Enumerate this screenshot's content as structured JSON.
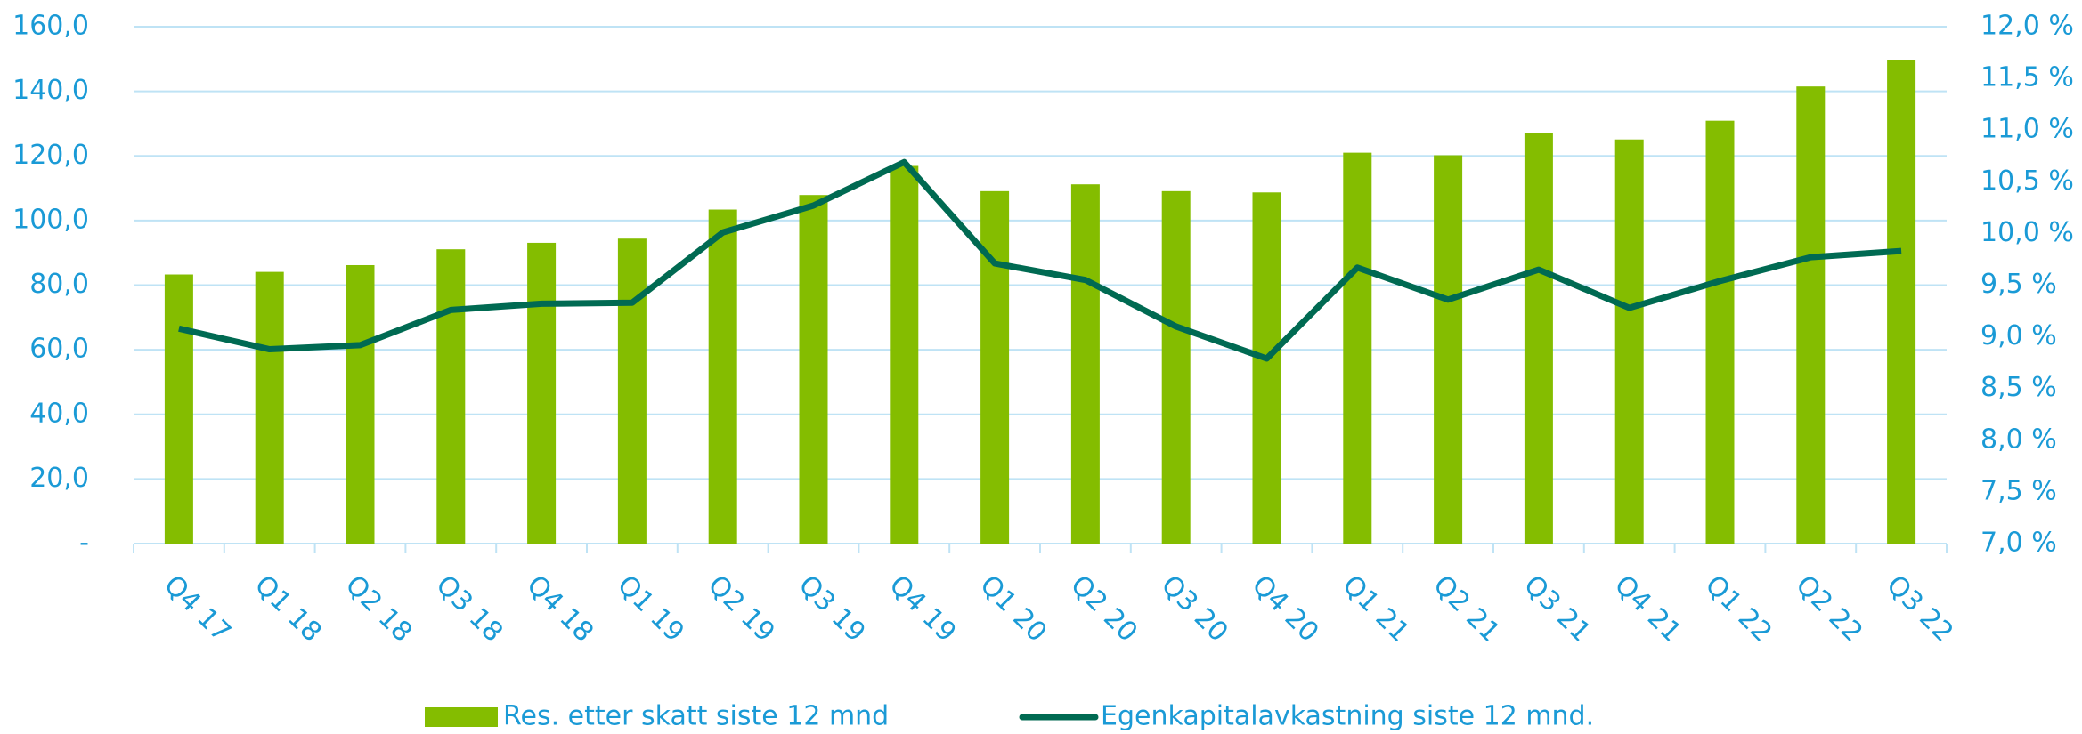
{
  "chart_data": {
    "type": "bar",
    "categories": [
      "Q4 17",
      "Q1 18",
      "Q2 18",
      "Q3 18",
      "Q4 18",
      "Q1 19",
      "Q2 19",
      "Q3 19",
      "Q4 19",
      "Q1 20",
      "Q2 20",
      "Q3 20",
      "Q4 20",
      "Q1 21",
      "Q2 21",
      "Q3 21",
      "Q4 21",
      "Q1 22",
      "Q2 22",
      "Q3 22"
    ],
    "series": [
      {
        "name": "Res. etter skatt siste 12 mnd",
        "color": "#84bd00",
        "type": "bar",
        "values": [
          83.3,
          84.1,
          86.2,
          91.1,
          93.1,
          94.4,
          103.4,
          107.9,
          116.9,
          109.1,
          111.2,
          109.1,
          108.7,
          121.0,
          120.2,
          127.2,
          125.1,
          130.9,
          141.5,
          149.7
        ]
      },
      {
        "name": "Egenkapitalavkastning siste 12 mnd.",
        "color": "#006a52",
        "type": "line",
        "axis": "y2",
        "values": [
          9.08,
          8.88,
          8.92,
          9.26,
          9.32,
          9.33,
          10.01,
          10.27,
          10.69,
          9.71,
          9.55,
          9.1,
          8.79,
          9.67,
          9.36,
          9.65,
          9.28,
          9.54,
          9.77,
          9.83
        ]
      }
    ],
    "ylim": [
      0,
      160
    ],
    "yticks": [
      {
        "value": 0,
        "label": "-"
      },
      {
        "value": 20,
        "label": "20,0"
      },
      {
        "value": 40,
        "label": "40,0"
      },
      {
        "value": 60,
        "label": "60,0"
      },
      {
        "value": 80,
        "label": "80,0"
      },
      {
        "value": 100,
        "label": "100,0"
      },
      {
        "value": 120,
        "label": "120,0"
      },
      {
        "value": 140,
        "label": "140,0"
      },
      {
        "value": 160,
        "label": "160,0"
      }
    ],
    "y2lim": [
      7,
      12
    ],
    "y2ticks": [
      {
        "value": 7,
        "label": "7,0 %"
      },
      {
        "value": 7.5,
        "label": "7,5 %"
      },
      {
        "value": 8,
        "label": "8,0 %"
      },
      {
        "value": 8.5,
        "label": "8,5 %"
      },
      {
        "value": 9,
        "label": "9,0 %"
      },
      {
        "value": 9.5,
        "label": "9,5 %"
      },
      {
        "value": 10,
        "label": "10,0 %"
      },
      {
        "value": 10.5,
        "label": "10,5 %"
      },
      {
        "value": 11,
        "label": "11,0 %"
      },
      {
        "value": 11.5,
        "label": "11,5 %"
      },
      {
        "value": 12,
        "label": "12,0 %"
      }
    ],
    "grid": true,
    "legend": "bottom"
  }
}
